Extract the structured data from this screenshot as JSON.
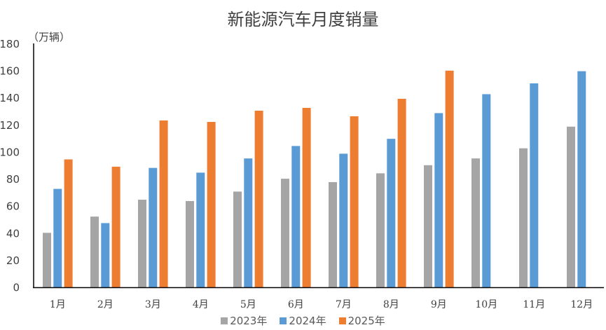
{
  "chart_data": {
    "type": "bar",
    "title": "新能源汽车月度销量",
    "ylabel": "（万辆）",
    "xlabel": "",
    "ylim": [
      0,
      180
    ],
    "yticks": [
      0,
      20,
      40,
      60,
      80,
      100,
      120,
      140,
      160,
      180
    ],
    "grid": false,
    "legend_position": "bottom",
    "categories": [
      "1月",
      "2月",
      "3月",
      "4月",
      "5月",
      "6月",
      "7月",
      "8月",
      "9月",
      "10月",
      "11月",
      "12月"
    ],
    "series": [
      {
        "name": "2023年",
        "color": "#A5A5A5",
        "values": [
          40.5,
          52.5,
          65.0,
          64.0,
          71.0,
          80.5,
          78.0,
          84.5,
          90.5,
          95.5,
          103.0,
          119.0
        ]
      },
      {
        "name": "2024年",
        "color": "#5B9BD5",
        "values": [
          73.0,
          47.7,
          88.5,
          85.0,
          95.5,
          104.7,
          99.0,
          110.0,
          129.0,
          143.0,
          151.0,
          160.0
        ]
      },
      {
        "name": "2025年",
        "color": "#ED7D31",
        "values": [
          94.8,
          89.4,
          123.6,
          122.5,
          130.8,
          132.9,
          126.7,
          139.6,
          160.4,
          null,
          null,
          null
        ]
      }
    ]
  },
  "title": "新能源汽车月度销量",
  "unit": "（万辆）",
  "legend": [
    {
      "label": "2023年",
      "color": "#A5A5A5"
    },
    {
      "label": "2024年",
      "color": "#5B9BD5"
    },
    {
      "label": "2025年",
      "color": "#ED7D31"
    }
  ]
}
